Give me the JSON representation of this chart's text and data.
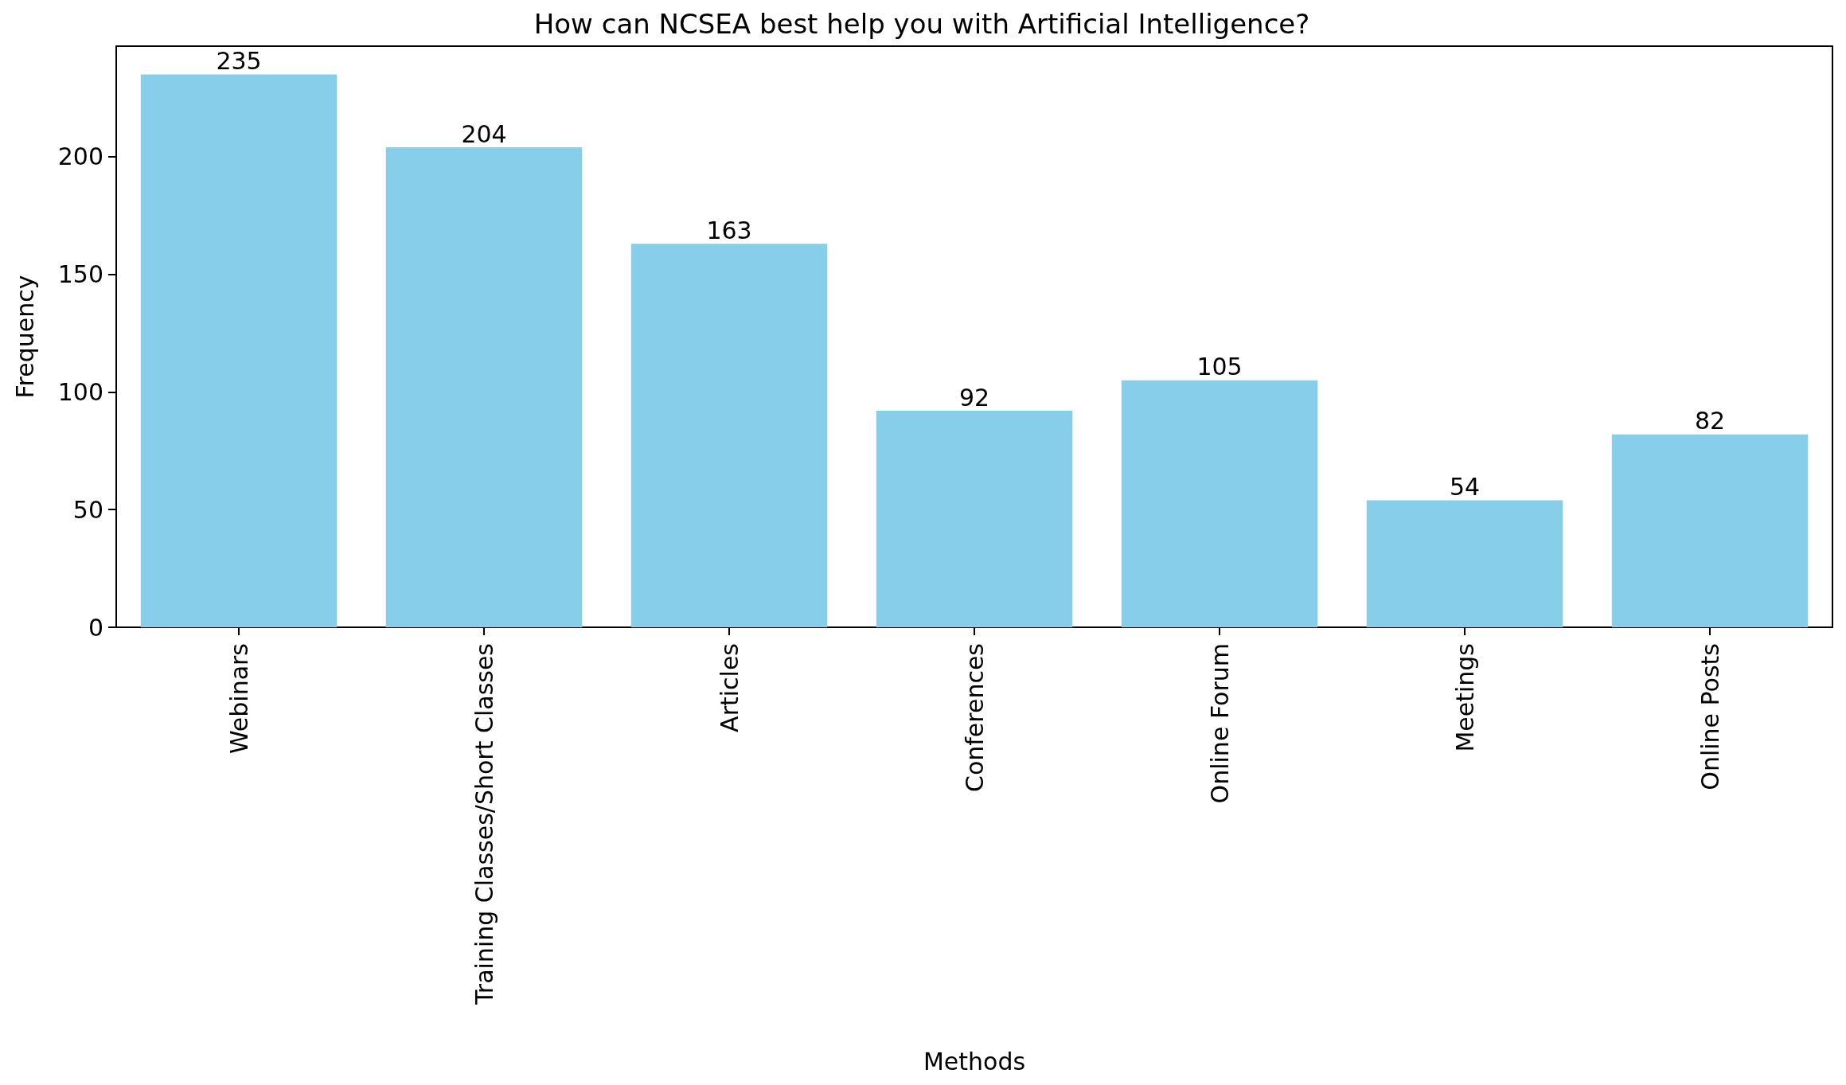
{
  "chart_data": {
    "type": "bar",
    "title": "How can NCSEA best help you with Artificial Intelligence?",
    "xlabel": "Methods",
    "ylabel": "Frequency",
    "categories": [
      "Webinars",
      "Training Classes/Short Classes",
      "Articles",
      "Conferences",
      "Online Forum",
      "Meetings",
      "Online Posts"
    ],
    "values": [
      235,
      204,
      163,
      92,
      105,
      54,
      82
    ],
    "color": "#87ceeb",
    "ylim": [
      0,
      247
    ],
    "yticks": [
      0,
      50,
      100,
      150,
      200
    ],
    "grid": false,
    "data_labels": true
  }
}
